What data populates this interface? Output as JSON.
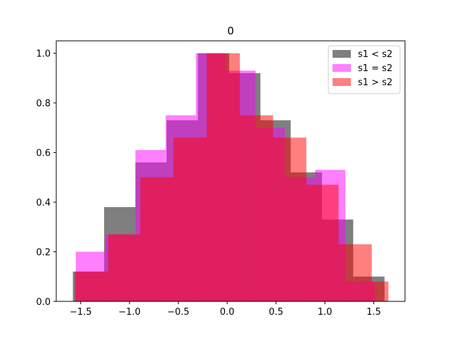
{
  "chart_data": {
    "type": "histogram",
    "title": "0",
    "xlabel": "",
    "ylabel": "",
    "xlim": [
      -1.75,
      1.82
    ],
    "ylim": [
      0,
      1.05
    ],
    "xticks": [
      -1.5,
      -1.0,
      -0.5,
      0.0,
      0.5,
      1.0,
      1.5
    ],
    "xtick_labels": [
      "−1.5",
      "−1.0",
      "−0.5",
      "0.0",
      "0.5",
      "1.0",
      "1.5"
    ],
    "yticks": [
      0.0,
      0.2,
      0.4,
      0.6,
      0.8,
      1.0
    ],
    "ytick_labels": [
      "0.0",
      "0.2",
      "0.4",
      "0.6",
      "0.8",
      "1.0"
    ],
    "grid": false,
    "legend": "top-right",
    "series": [
      {
        "name": "s1 < s2",
        "color": "#000000",
        "opacity": 0.5,
        "bin_edges": [
          -1.58,
          -1.26,
          -0.94,
          -0.62,
          -0.3,
          0.02,
          0.34,
          0.65,
          0.97,
          1.29,
          1.61
        ],
        "values": [
          0.12,
          0.38,
          0.56,
          0.73,
          1.0,
          0.92,
          0.73,
          0.52,
          0.33,
          0.1
        ]
      },
      {
        "name": "s1 = s2",
        "color": "#ff00ff",
        "opacity": 0.5,
        "bin_edges": [
          -1.55,
          -1.25,
          -0.94,
          -0.63,
          -0.32,
          -0.02,
          0.29,
          0.59,
          0.9,
          1.21,
          1.51
        ],
        "values": [
          0.2,
          0.27,
          0.61,
          0.75,
          1.0,
          0.93,
          0.7,
          0.5,
          0.53,
          0.08
        ]
      },
      {
        "name": "s1 > s2",
        "color": "#ff0000",
        "opacity": 0.5,
        "bin_edges": [
          -1.56,
          -1.22,
          -0.89,
          -0.55,
          -0.21,
          0.13,
          0.47,
          0.81,
          1.14,
          1.48,
          1.65
        ],
        "values": [
          0.12,
          0.27,
          0.5,
          0.66,
          1.0,
          0.75,
          0.66,
          0.47,
          0.23,
          0.08
        ]
      }
    ]
  }
}
